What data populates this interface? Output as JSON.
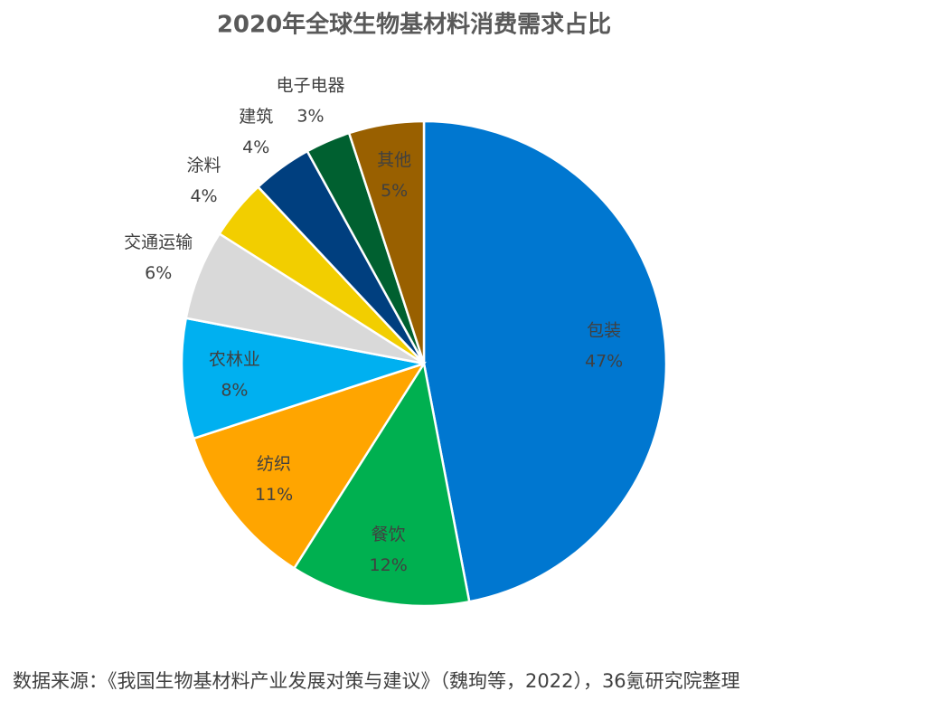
{
  "chart_data": {
    "type": "pie",
    "title": "2020年全球生物基材料消费需求占比",
    "categories": [
      "包装",
      "餐饮",
      "纺织",
      "农林业",
      "交通运输",
      "涂料",
      "建筑",
      "电子电器",
      "其他"
    ],
    "values": [
      47,
      12,
      11,
      8,
      6,
      4,
      4,
      3,
      5
    ],
    "value_labels": [
      "47%",
      "12%",
      "11%",
      "8%",
      "6%",
      "4%",
      "4%",
      "3%",
      "5%"
    ],
    "colors": [
      "#0077d0",
      "#00b050",
      "#ffa500",
      "#00b0f0",
      "#d9d9d9",
      "#f2ce00",
      "#003f7f",
      "#006030",
      "#996000"
    ],
    "source": "数据来源：《我国生物基材料产业发展对策与建议》（魏珣等，2022），36氪研究院整理"
  }
}
